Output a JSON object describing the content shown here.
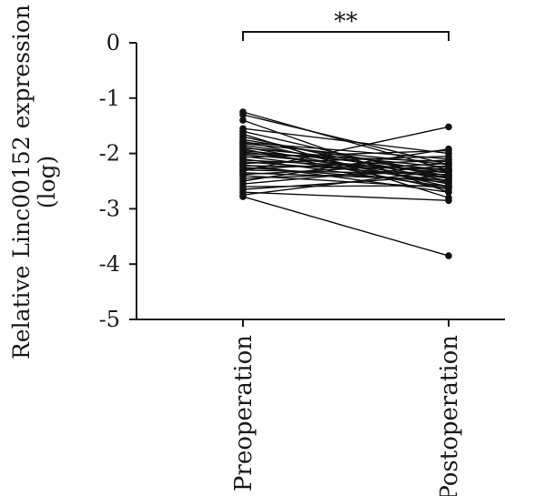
{
  "chart_data": {
    "type": "line",
    "categories": [
      "Preoperation",
      "Postoperation"
    ],
    "ylabel_line1": "Relative Linc00152 expression",
    "ylabel_line2": "(log)",
    "ylim": [
      -5,
      0
    ],
    "yticks": [
      0,
      -1,
      -2,
      -3,
      -4,
      -5
    ],
    "ytick_labels": [
      "0",
      "-1",
      "-2",
      "-3",
      "-4",
      "-5"
    ],
    "significance": "**",
    "grid": false,
    "pairs": [
      [
        -1.25,
        -2.3
      ],
      [
        -1.3,
        -2.2
      ],
      [
        -1.4,
        -2.7
      ],
      [
        -1.55,
        -2.0
      ],
      [
        -1.6,
        -2.45
      ],
      [
        -1.65,
        -2.8
      ],
      [
        -1.7,
        -2.5
      ],
      [
        -1.75,
        -2.35
      ],
      [
        -1.78,
        -2.6
      ],
      [
        -1.8,
        -2.1
      ],
      [
        -1.82,
        -2.2
      ],
      [
        -1.85,
        -2.4
      ],
      [
        -1.88,
        -2.55
      ],
      [
        -1.9,
        -2.25
      ],
      [
        -1.92,
        -2.65
      ],
      [
        -1.95,
        -2.3
      ],
      [
        -1.97,
        -2.45
      ],
      [
        -2.0,
        -2.15
      ],
      [
        -2.02,
        -2.35
      ],
      [
        -2.05,
        -2.5
      ],
      [
        -2.07,
        -1.95
      ],
      [
        -2.1,
        -2.6
      ],
      [
        -2.12,
        -2.3
      ],
      [
        -2.15,
        -2.42
      ],
      [
        -2.18,
        -2.05
      ],
      [
        -2.2,
        -2.7
      ],
      [
        -2.22,
        -2.28
      ],
      [
        -2.25,
        -2.52
      ],
      [
        -2.28,
        -2.12
      ],
      [
        -2.3,
        -2.38
      ],
      [
        -2.32,
        -1.52
      ],
      [
        -2.35,
        -2.48
      ],
      [
        -2.38,
        -2.18
      ],
      [
        -2.4,
        -2.62
      ],
      [
        -2.45,
        -2.32
      ],
      [
        -2.5,
        -1.92
      ],
      [
        -2.55,
        -2.22
      ],
      [
        -2.6,
        -2.58
      ],
      [
        -2.65,
        -2.4
      ],
      [
        -2.7,
        -2.85
      ],
      [
        -2.78,
        -3.85
      ],
      [
        -2.75,
        -2.3
      ]
    ]
  }
}
